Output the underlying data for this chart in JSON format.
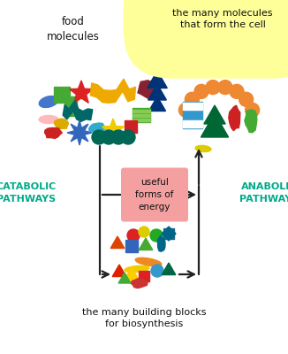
{
  "bg_color": "#ffffff",
  "title_left": "food\nmolecules",
  "title_right": "the many molecules\nthat form the cell",
  "title_right_bg": "#ffff99",
  "label_left": "CATABOLIC\nPATHWAYS",
  "label_right": "ANABOLIC\nPATHWAYS",
  "label_bottom": "the many building blocks\nfor biosynthesis",
  "center_box_text": "useful\nforms of\nenergy",
  "center_box_bg": "#f4a0a0",
  "label_color_lr": "#00aa88",
  "arrow_color": "#222222"
}
